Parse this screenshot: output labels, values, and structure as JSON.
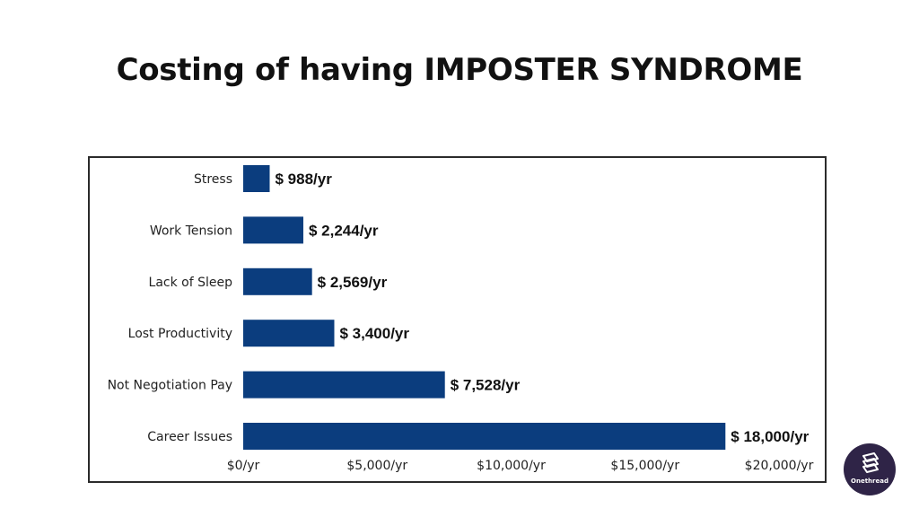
{
  "title": "Costing of having IMPOSTER SYNDROME",
  "brand": {
    "name": "Onethread",
    "icon": "onethread-logo-icon",
    "background_color": "#2f2447"
  },
  "chart_data": {
    "type": "bar",
    "orientation": "horizontal",
    "categories": [
      "Stress",
      "Work Tension",
      "Lack of Sleep",
      "Lost Productivity",
      "Not Negotiation Pay",
      "Career Issues"
    ],
    "values": [
      988,
      2244,
      2569,
      3400,
      7528,
      18000
    ],
    "value_labels": [
      "$ 988/yr",
      "$ 2,244/yr",
      "$ 2,569/yr",
      "$ 3,400/yr",
      "$ 7,528/yr",
      "$ 18,000/yr"
    ],
    "xticks": [
      0,
      5000,
      10000,
      15000,
      20000
    ],
    "xtick_labels": [
      "$0/yr",
      "$5,000/yr",
      "$10,000/yr",
      "$15,000/yr",
      "$20,000/yr"
    ],
    "xlim": [
      0,
      20000
    ],
    "bar_color": "#0b3d7e",
    "grid": false,
    "legend": "none"
  }
}
